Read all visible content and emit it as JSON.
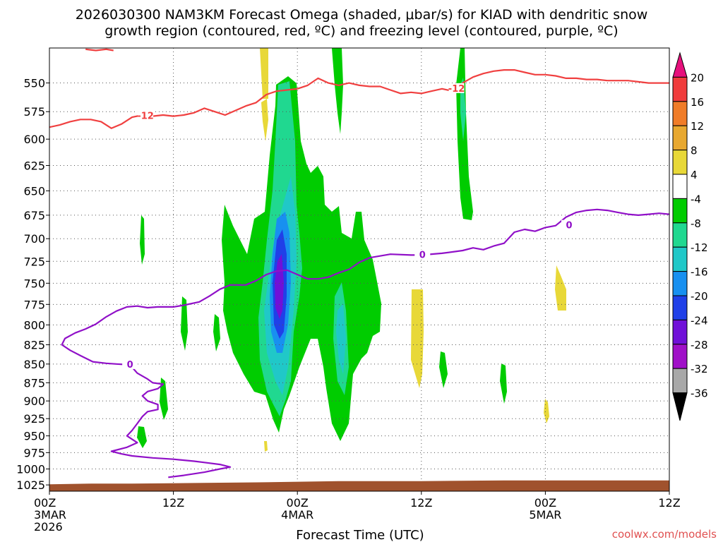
{
  "chart_data": {
    "type": "time-height cross section",
    "title_line1": "2026030300 NAM3KM Forecast Omega (shaded, μbar/s) for KIAD with dendritic snow",
    "title_line2": "growth region (contoured, red, ºC) and freezing level (contoured, purple, ºC)",
    "xlabel": "Forecast Time (UTC)",
    "credit": "coolwx.com/models",
    "xlim": [
      0,
      60
    ],
    "ylim": [
      1035,
      521
    ],
    "y_scale": "log",
    "y_ticks": [
      550,
      575,
      600,
      625,
      650,
      675,
      700,
      725,
      750,
      775,
      800,
      825,
      850,
      875,
      900,
      925,
      950,
      975,
      1000,
      1025
    ],
    "x_ticks": [
      {
        "h": 0,
        "line1": "00Z",
        "line2": "3MAR",
        "line3": "2026"
      },
      {
        "h": 12,
        "line1": "12Z",
        "line2": "",
        "line3": ""
      },
      {
        "h": 24,
        "line1": "00Z",
        "line2": "4MAR",
        "line3": ""
      },
      {
        "h": 36,
        "line1": "12Z",
        "line2": "",
        "line3": ""
      },
      {
        "h": 48,
        "line1": "00Z",
        "line2": "5MAR",
        "line3": ""
      },
      {
        "h": 60,
        "line1": "12Z",
        "line2": "",
        "line3": ""
      }
    ],
    "colorbar": {
      "labels": [
        "20",
        "16",
        "12",
        "8",
        "4",
        "-4",
        "-8",
        "-12",
        "-16",
        "-20",
        "-24",
        "-28",
        "-32",
        "-36"
      ],
      "colors": [
        "#e6107c",
        "#f03c3c",
        "#f07c28",
        "#e8a830",
        "#e8d838",
        "#ffffff",
        "#00cc00",
        "#20d890",
        "#20c8c8",
        "#1890f0",
        "#2040e8",
        "#7010d8",
        "#a010c8",
        "#a8a8a8",
        "#000000"
      ]
    },
    "omega_colors": {
      "neg4_8": "#00cc00",
      "neg8_12": "#20d890",
      "neg12_16": "#20c8c8",
      "neg16_20": "#1890f0",
      "neg20_24": "#2040e8",
      "neg24_28": "#7010d8",
      "pos4_8": "#e8d838"
    },
    "terrain_color": "#a0522d",
    "red_contour": {
      "color": "#f04040",
      "level": -12,
      "points": [
        [
          0,
          589
        ],
        [
          1,
          587
        ],
        [
          2,
          584
        ],
        [
          3,
          582
        ],
        [
          4,
          582
        ],
        [
          5,
          584
        ],
        [
          6,
          590
        ],
        [
          7,
          586
        ],
        [
          8,
          580
        ],
        [
          9,
          578
        ],
        [
          10,
          579
        ],
        [
          11,
          578
        ],
        [
          12,
          579
        ],
        [
          13,
          578
        ],
        [
          14,
          576
        ],
        [
          15,
          572
        ],
        [
          16,
          575
        ],
        [
          17,
          578
        ],
        [
          18,
          574
        ],
        [
          19,
          570
        ],
        [
          20,
          567
        ],
        [
          21,
          560
        ],
        [
          22,
          557
        ],
        [
          23,
          556
        ],
        [
          24,
          555
        ],
        [
          25,
          552
        ],
        [
          26,
          546
        ],
        [
          27,
          550
        ],
        [
          28,
          552
        ],
        [
          29,
          550
        ],
        [
          30,
          552
        ],
        [
          31,
          553
        ],
        [
          32,
          553
        ],
        [
          33,
          556
        ],
        [
          34,
          559
        ],
        [
          35,
          558
        ],
        [
          36,
          559
        ],
        [
          37,
          557
        ],
        [
          38,
          555
        ],
        [
          39,
          557
        ],
        [
          40,
          550
        ],
        [
          41,
          545
        ],
        [
          42,
          542
        ],
        [
          43,
          540
        ],
        [
          44,
          539
        ],
        [
          45,
          539
        ],
        [
          46,
          541
        ],
        [
          47,
          543
        ],
        [
          48,
          543
        ],
        [
          49,
          544
        ],
        [
          50,
          546
        ],
        [
          51,
          546
        ],
        [
          52,
          547
        ],
        [
          53,
          547
        ],
        [
          54,
          548
        ],
        [
          55,
          548
        ],
        [
          56,
          548
        ],
        [
          57,
          549
        ],
        [
          58,
          550
        ],
        [
          59,
          550
        ],
        [
          60,
          550
        ]
      ]
    },
    "red_contour_top": [
      [
        3.5,
        522
      ],
      [
        4.5,
        523
      ],
      [
        5.5,
        522
      ],
      [
        6.2,
        523
      ]
    ],
    "purple_contour": {
      "color": "#9010c8",
      "level": 0,
      "points": [
        [
          11.5,
          1013
        ],
        [
          13,
          1010
        ],
        [
          15,
          1005
        ],
        [
          16.5,
          1000
        ],
        [
          17.5,
          997
        ],
        [
          16.5,
          993
        ],
        [
          15,
          990
        ],
        [
          14,
          988
        ],
        [
          12,
          985
        ],
        [
          10,
          983
        ],
        [
          8,
          980
        ],
        [
          7,
          977
        ],
        [
          6,
          973
        ],
        [
          7.5,
          967
        ],
        [
          8.5,
          960
        ],
        [
          8,
          955
        ],
        [
          7.5,
          950
        ],
        [
          8,
          942
        ],
        [
          8.5,
          932
        ],
        [
          9,
          922
        ],
        [
          9.5,
          915
        ],
        [
          10.5,
          912
        ],
        [
          10.5,
          905
        ],
        [
          9.5,
          900
        ],
        [
          9,
          893
        ],
        [
          9.5,
          887
        ],
        [
          10.5,
          883
        ],
        [
          11,
          877
        ],
        [
          10,
          875
        ],
        [
          9.5,
          870
        ],
        [
          8.5,
          862
        ],
        [
          7.8,
          851
        ],
        [
          6.5,
          850
        ],
        [
          5.5,
          849
        ],
        [
          4.2,
          847
        ],
        [
          3,
          839
        ],
        [
          2,
          832
        ],
        [
          1.2,
          825
        ],
        [
          1.5,
          817
        ],
        [
          2.5,
          810
        ],
        [
          3.5,
          805
        ],
        [
          4.5,
          799
        ],
        [
          5.5,
          790
        ],
        [
          6.5,
          783
        ],
        [
          7.5,
          778
        ],
        [
          8.5,
          777
        ],
        [
          9.5,
          779
        ],
        [
          10.5,
          778
        ],
        [
          12,
          778
        ],
        [
          13,
          776
        ],
        [
          14.5,
          772
        ],
        [
          15.5,
          765
        ],
        [
          16.5,
          757
        ],
        [
          17.5,
          752
        ],
        [
          19,
          752
        ],
        [
          20,
          747
        ],
        [
          21,
          740
        ],
        [
          22,
          736
        ],
        [
          23,
          735
        ],
        [
          24,
          740
        ],
        [
          25,
          745
        ],
        [
          26,
          745
        ],
        [
          27,
          743
        ],
        [
          28,
          738
        ],
        [
          29,
          734
        ],
        [
          30,
          726
        ],
        [
          31,
          721
        ],
        [
          33,
          717
        ],
        [
          35,
          718
        ],
        [
          36,
          718
        ],
        [
          38,
          716
        ],
        [
          40,
          713
        ],
        [
          41,
          710
        ],
        [
          42,
          712
        ],
        [
          43,
          708
        ],
        [
          44,
          705
        ],
        [
          45,
          693
        ],
        [
          46,
          690
        ],
        [
          47,
          692
        ],
        [
          48,
          688
        ],
        [
          49,
          686
        ],
        [
          50,
          677
        ],
        [
          51,
          672
        ],
        [
          52,
          670
        ],
        [
          53,
          669
        ],
        [
          54,
          670
        ],
        [
          55,
          672
        ],
        [
          56,
          674
        ],
        [
          57,
          675
        ],
        [
          58,
          674
        ],
        [
          59,
          673
        ],
        [
          60,
          674
        ]
      ]
    }
  }
}
